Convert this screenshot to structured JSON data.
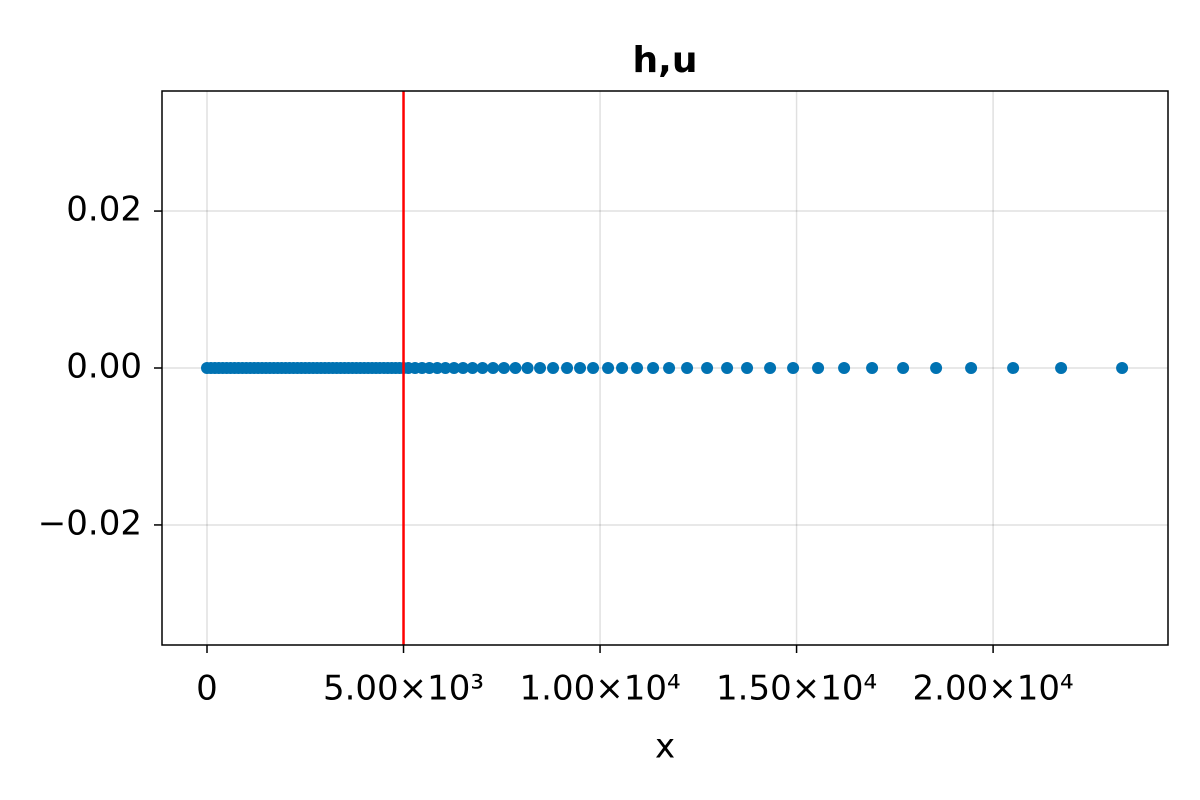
{
  "chart_data": {
    "type": "scatter",
    "title": "h,u",
    "xlabel": "x",
    "x": [
      0,
      100,
      200,
      300,
      400,
      500,
      600,
      700,
      800,
      900,
      1000,
      1100,
      1200,
      1300,
      1400,
      1500,
      1600,
      1700,
      1800,
      1900,
      2000,
      2100,
      2200,
      2300,
      2400,
      2500,
      2600,
      2700,
      2800,
      2900,
      3000,
      3100,
      3200,
      3300,
      3400,
      3500,
      3600,
      3700,
      3800,
      3900,
      4000,
      4100,
      4200,
      4300,
      4400,
      4500,
      4600,
      4700,
      4800,
      4900,
      5000,
      5122,
      5293,
      5471,
      5659,
      5858,
      6066,
      6285,
      6514,
      6756,
      7010,
      7277,
      7555,
      7847,
      8155,
      8473,
      8804,
      9160,
      9491,
      9822,
      10204,
      10560,
      10941,
      11349,
      11756,
      12214,
      12723,
      13232,
      13740,
      14326,
      14911,
      15547,
      16209,
      16921,
      17710,
      18550,
      19440,
      20509,
      21730,
      23282
    ],
    "values": [
      0,
      0,
      0,
      0,
      0,
      0,
      0,
      0,
      0,
      0,
      0,
      0,
      0,
      0,
      0,
      0,
      0,
      0,
      0,
      0,
      0,
      0,
      0,
      0,
      0,
      0,
      0,
      0,
      0,
      0,
      0,
      0,
      0,
      0,
      0,
      0,
      0,
      0,
      0,
      0,
      0,
      0,
      0,
      0,
      0,
      0,
      0,
      0,
      0,
      0,
      0,
      0,
      0,
      0,
      0,
      0,
      0,
      0,
      0,
      0,
      0,
      0,
      0,
      0,
      0,
      0,
      0,
      0,
      0,
      0,
      0,
      0,
      0,
      0,
      0,
      0,
      0,
      0,
      0,
      0,
      0,
      0,
      0,
      0,
      0,
      0,
      0,
      0,
      0,
      0
    ],
    "color": "#0072b2",
    "vlines": [
      5000
    ],
    "vline_color": "#ff0000",
    "xlim": [
      -1145,
      24450
    ],
    "ylim": [
      -0.0353,
      0.0353
    ],
    "xticks": [
      0,
      {
        "value": 5000,
        "label": "5.00×10³"
      },
      {
        "value": 10000,
        "label": "1.00×10⁴"
      },
      {
        "value": 15000,
        "label": "1.50×10⁴"
      },
      {
        "value": 20000,
        "label": "2.00×10⁴"
      }
    ],
    "yticks": [
      {
        "value": 0.02,
        "label": "0.02"
      },
      {
        "value": 0,
        "label": "0.00"
      },
      {
        "value": -0.02,
        "label": "−0.02"
      }
    ],
    "grid": true
  }
}
